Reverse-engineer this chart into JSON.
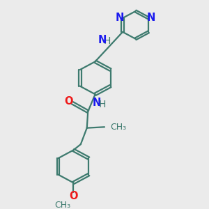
{
  "bg_color": "#ebebeb",
  "bond_color": "#3d7a6e",
  "nitrogen_color": "#1a1aee",
  "oxygen_color": "#ee1a1a",
  "text_color": "#3d7a6e",
  "bond_width": 1.6,
  "font_size": 10.5,
  "xlim": [
    0,
    10
  ],
  "ylim": [
    0,
    10
  ]
}
